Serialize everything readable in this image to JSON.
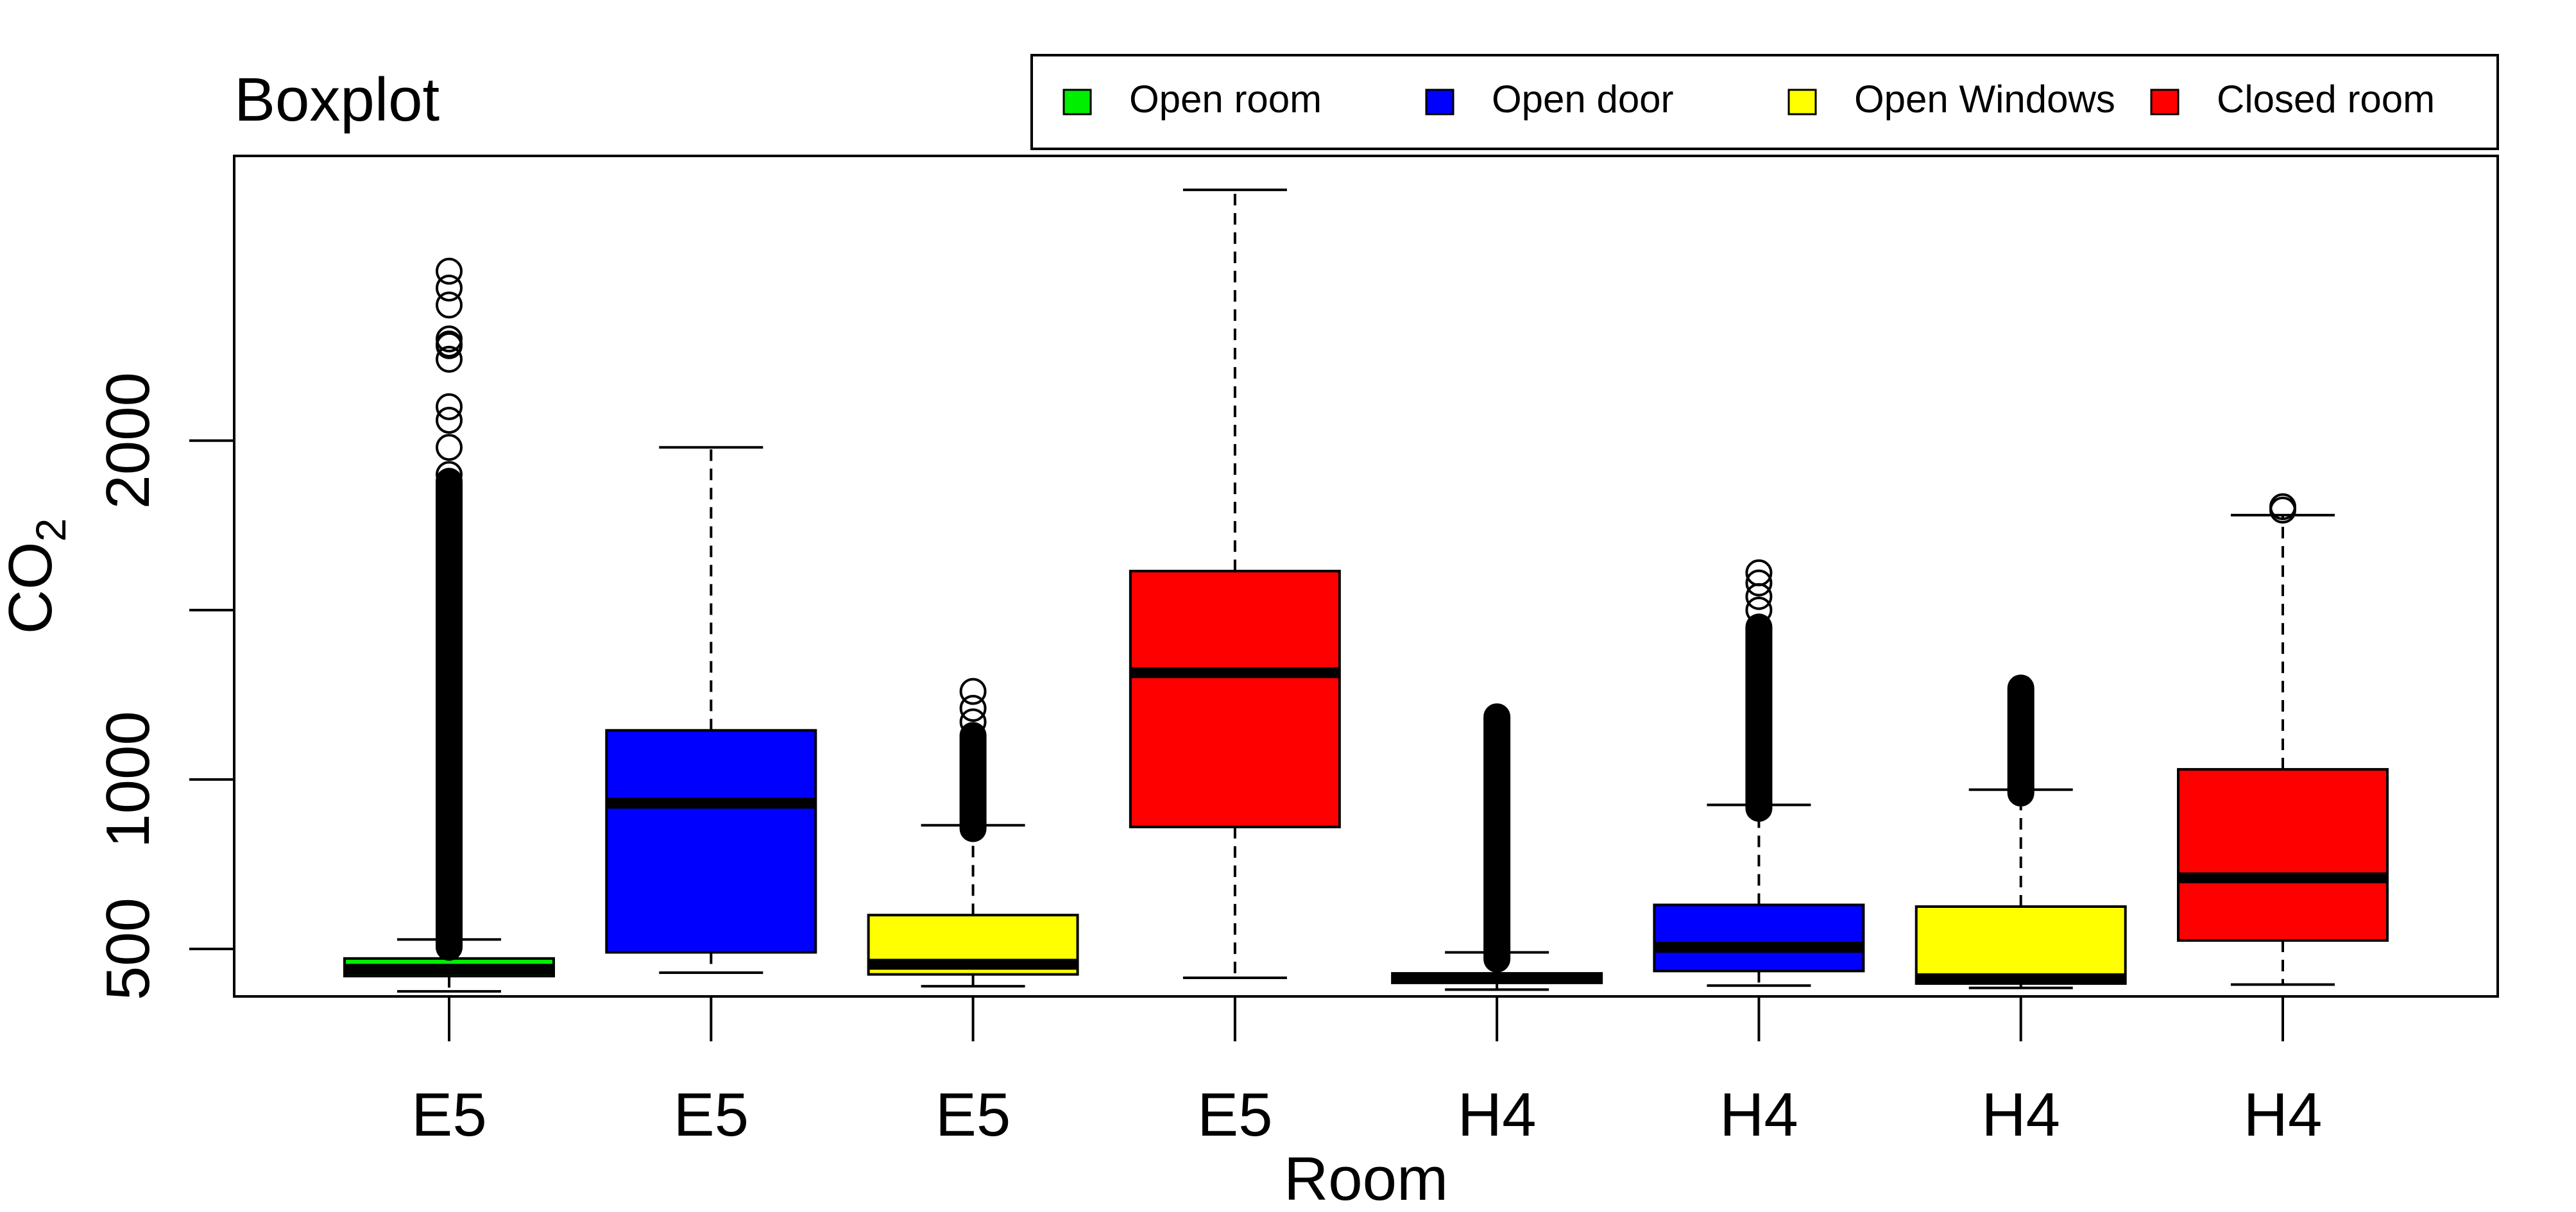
{
  "chart_data": {
    "type": "boxplot",
    "title": "Boxplot",
    "xlabel": "Room",
    "ylabel": {
      "main": "CO",
      "subscript": "2"
    },
    "ylim": [
      360,
      2840
    ],
    "y_ticks": [
      500,
      1000,
      2000
    ],
    "y_tick_labels": [
      "500",
      "1000",
      "2000"
    ],
    "grid": false,
    "legend": {
      "position": "top-right",
      "entries": [
        {
          "label": "Open room",
          "color": "#00ee00"
        },
        {
          "label": "Open door",
          "color": "#0000ff"
        },
        {
          "label": "Open Windows",
          "color": "#ffff00"
        },
        {
          "label": "Closed room",
          "color": "#ff0000"
        }
      ]
    },
    "categories": [
      "E5",
      "E5",
      "E5",
      "E5",
      "H4",
      "H4",
      "H4",
      "H4"
    ],
    "boxes": [
      {
        "group": "Open room",
        "color": "#00ee00",
        "whisker_low": 375,
        "q1": 420,
        "median": 440,
        "q3": 472,
        "whisker_high": 528,
        "outlier_range": [
          505,
          1880
        ],
        "outlier_points": [
          2500,
          2450,
          2400,
          2300,
          2285,
          2280,
          2240,
          2100,
          2060,
          1980,
          1900
        ]
      },
      {
        "group": "Open door",
        "color": "#0000ff",
        "whisker_low": 430,
        "q1": 490,
        "median": 930,
        "q3": 1145,
        "whisker_high": 1980,
        "outlier_range": null,
        "outlier_points": []
      },
      {
        "group": "Open Windows",
        "color": "#ffff00",
        "whisker_low": 390,
        "q1": 425,
        "median": 455,
        "q3": 600,
        "whisker_high": 865,
        "outlier_range": [
          855,
          1130
        ],
        "outlier_points": [
          1260,
          1210,
          1170
        ]
      },
      {
        "group": "Closed room",
        "color": "#ff0000",
        "whisker_low": 415,
        "q1": 860,
        "median": 1315,
        "q3": 1615,
        "whisker_high": 2740,
        "outlier_range": null,
        "outlier_points": []
      },
      {
        "group": "Open room",
        "color": "#00ee00",
        "whisker_low": 380,
        "q1": 400,
        "median": 414,
        "q3": 428,
        "whisker_high": 490,
        "outlier_range": [
          470,
          1185
        ],
        "outlier_points": []
      },
      {
        "group": "Open door",
        "color": "#0000ff",
        "whisker_low": 392,
        "q1": 435,
        "median": 505,
        "q3": 630,
        "whisker_high": 925,
        "outlier_range": [
          915,
          1450
        ],
        "outlier_points": [
          1610,
          1580,
          1540,
          1500
        ]
      },
      {
        "group": "Open Windows",
        "color": "#ffff00",
        "whisker_low": 385,
        "q1": 398,
        "median": 412,
        "q3": 625,
        "whisker_high": 970,
        "outlier_range": [
          960,
          1270
        ],
        "outlier_points": []
      },
      {
        "group": "Closed room",
        "color": "#ff0000",
        "whisker_low": 395,
        "q1": 525,
        "median": 710,
        "q3": 1030,
        "whisker_high": 1780,
        "outlier_range": null,
        "outlier_points": [
          1805,
          1795
        ]
      }
    ]
  }
}
